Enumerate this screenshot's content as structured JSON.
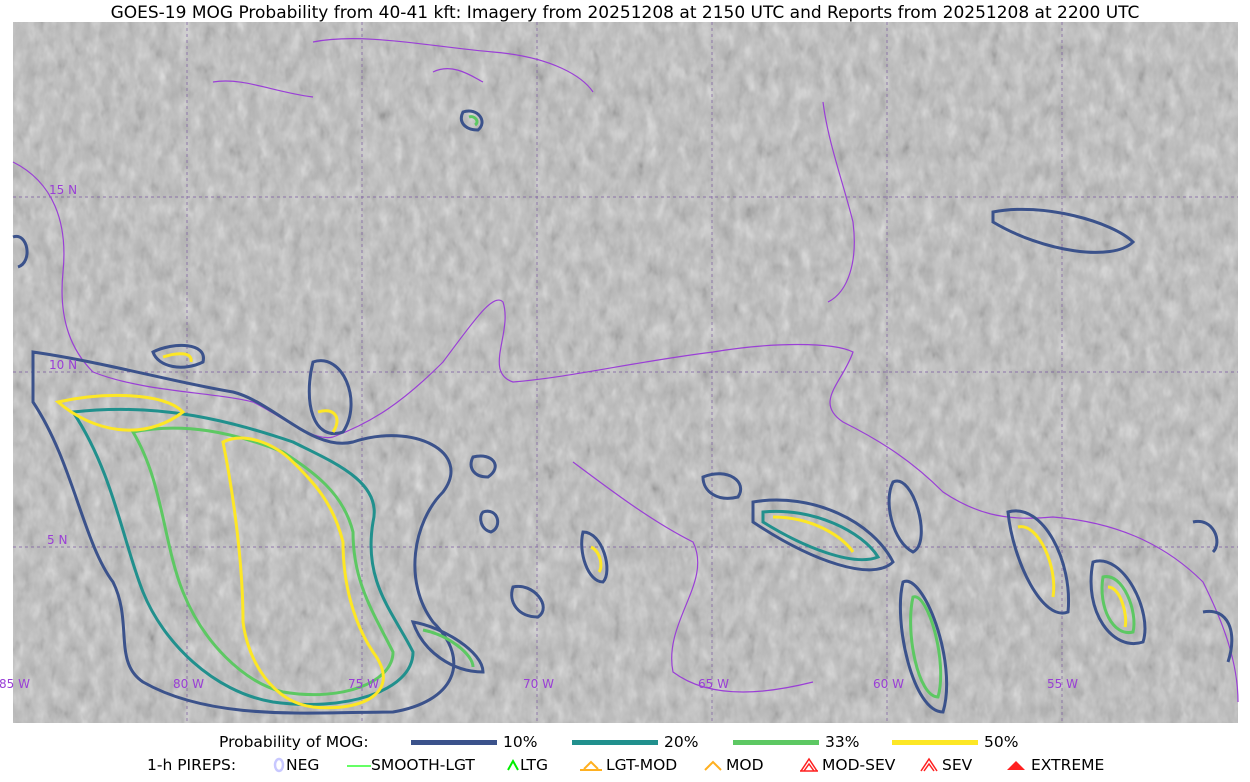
{
  "title": "GOES-19 MOG Probability from 40-41 kft: Imagery from 20251208 at 2150 UTC and Reports from 20251208 at 2200 UTC",
  "map": {
    "background": "satellite imagery (grayscale)",
    "coastline_color": "#9a3fd6",
    "lat_labels": [
      "15 N",
      "10 N",
      "5 N"
    ],
    "lon_labels": [
      "85 W",
      "80 W",
      "75 W",
      "70 W",
      "65 W",
      "60 W",
      "55 W"
    ]
  },
  "legend_probability": {
    "label": "Probability of MOG:",
    "items": [
      {
        "label": "10%",
        "color": "#3b528b"
      },
      {
        "label": "20%",
        "color": "#21908d"
      },
      {
        "label": "33%",
        "color": "#5dc863"
      },
      {
        "label": "50%",
        "color": "#fde725"
      }
    ]
  },
  "legend_pireps": {
    "label": "1-h PIREPS:",
    "items": [
      {
        "label": "NEG",
        "icon": "neg-circle-icon",
        "color": "#c8c8ff"
      },
      {
        "label": "SMOOTH-LGT",
        "icon": "line-icon",
        "color": "#32ff32"
      },
      {
        "label": "LTG",
        "icon": "caret-icon",
        "color": "#00ee00"
      },
      {
        "label": "LGT-MOD",
        "icon": "caret-bar-icon",
        "color": "#ffb020"
      },
      {
        "label": "MOD",
        "icon": "caret-icon",
        "color": "#ffb020"
      },
      {
        "label": "MOD-SEV",
        "icon": "double-caret-icon",
        "color": "#ff2020"
      },
      {
        "label": "SEV",
        "icon": "double-caret-icon",
        "color": "#ff2020"
      },
      {
        "label": "EXTREME",
        "icon": "filled-triangle-icon",
        "color": "#ff2020"
      }
    ]
  }
}
